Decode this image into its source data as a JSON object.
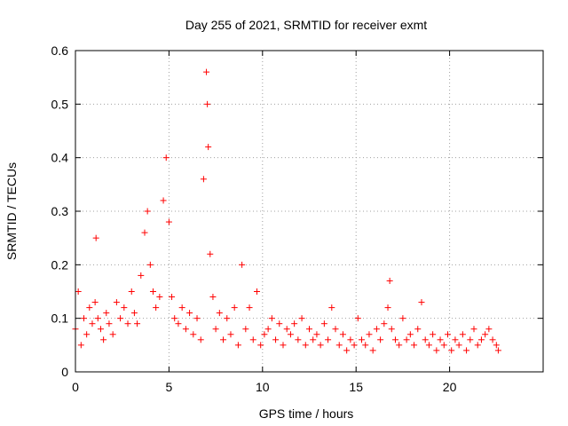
{
  "chart_data": {
    "type": "scatter",
    "title": "Day 255 of 2021, SRMTID for receiver exmt",
    "xlabel": "GPS time / hours",
    "ylabel": "SRMTID / TECUs",
    "xlim": [
      0,
      25
    ],
    "ylim": [
      0,
      0.6
    ],
    "grid": true,
    "xticks": [
      0,
      5,
      10,
      15,
      20
    ],
    "yticks": [
      0,
      0.1,
      0.2,
      0.3,
      0.4,
      0.5,
      0.6
    ],
    "marker": "+",
    "color": "#ff0000",
    "series": [
      {
        "name": "SRMTID",
        "x": [
          0.0,
          0.15,
          0.3,
          0.45,
          0.6,
          0.75,
          0.9,
          1.05,
          1.1,
          1.2,
          1.35,
          1.5,
          1.65,
          1.8,
          2.0,
          2.2,
          2.4,
          2.6,
          2.8,
          3.0,
          3.15,
          3.3,
          3.5,
          3.7,
          3.85,
          4.0,
          4.15,
          4.3,
          4.5,
          4.7,
          4.85,
          5.0,
          5.15,
          5.3,
          5.5,
          5.7,
          5.9,
          6.1,
          6.3,
          6.5,
          6.7,
          6.85,
          7.0,
          7.05,
          7.1,
          7.2,
          7.35,
          7.5,
          7.7,
          7.9,
          8.1,
          8.3,
          8.5,
          8.7,
          8.9,
          9.1,
          9.3,
          9.5,
          9.7,
          9.9,
          10.1,
          10.3,
          10.5,
          10.7,
          10.9,
          11.1,
          11.3,
          11.5,
          11.7,
          11.9,
          12.1,
          12.3,
          12.5,
          12.7,
          12.9,
          13.1,
          13.3,
          13.5,
          13.7,
          13.9,
          14.1,
          14.3,
          14.5,
          14.7,
          14.9,
          15.1,
          15.3,
          15.5,
          15.7,
          15.9,
          16.1,
          16.3,
          16.5,
          16.7,
          16.8,
          16.9,
          17.1,
          17.3,
          17.5,
          17.7,
          17.9,
          18.1,
          18.3,
          18.5,
          18.7,
          18.9,
          19.1,
          19.3,
          19.5,
          19.7,
          19.9,
          20.1,
          20.3,
          20.5,
          20.7,
          20.9,
          21.1,
          21.3,
          21.5,
          21.7,
          21.9,
          22.1,
          22.3,
          22.5,
          22.6
        ],
        "y": [
          0.08,
          0.15,
          0.05,
          0.1,
          0.07,
          0.12,
          0.09,
          0.13,
          0.25,
          0.1,
          0.08,
          0.06,
          0.11,
          0.09,
          0.07,
          0.13,
          0.1,
          0.12,
          0.09,
          0.15,
          0.11,
          0.09,
          0.18,
          0.26,
          0.3,
          0.2,
          0.15,
          0.12,
          0.14,
          0.32,
          0.4,
          0.28,
          0.14,
          0.1,
          0.09,
          0.12,
          0.08,
          0.11,
          0.07,
          0.1,
          0.06,
          0.36,
          0.56,
          0.5,
          0.42,
          0.22,
          0.14,
          0.08,
          0.11,
          0.06,
          0.1,
          0.07,
          0.12,
          0.05,
          0.2,
          0.08,
          0.12,
          0.06,
          0.15,
          0.05,
          0.07,
          0.08,
          0.1,
          0.06,
          0.09,
          0.05,
          0.08,
          0.07,
          0.09,
          0.06,
          0.1,
          0.05,
          0.08,
          0.06,
          0.07,
          0.05,
          0.09,
          0.06,
          0.12,
          0.08,
          0.05,
          0.07,
          0.04,
          0.06,
          0.05,
          0.1,
          0.06,
          0.05,
          0.07,
          0.04,
          0.08,
          0.06,
          0.09,
          0.12,
          0.17,
          0.08,
          0.06,
          0.05,
          0.1,
          0.06,
          0.07,
          0.05,
          0.08,
          0.13,
          0.06,
          0.05,
          0.07,
          0.04,
          0.06,
          0.05,
          0.07,
          0.04,
          0.06,
          0.05,
          0.07,
          0.04,
          0.06,
          0.08,
          0.05,
          0.06,
          0.07,
          0.08,
          0.06,
          0.05,
          0.04
        ]
      }
    ]
  }
}
